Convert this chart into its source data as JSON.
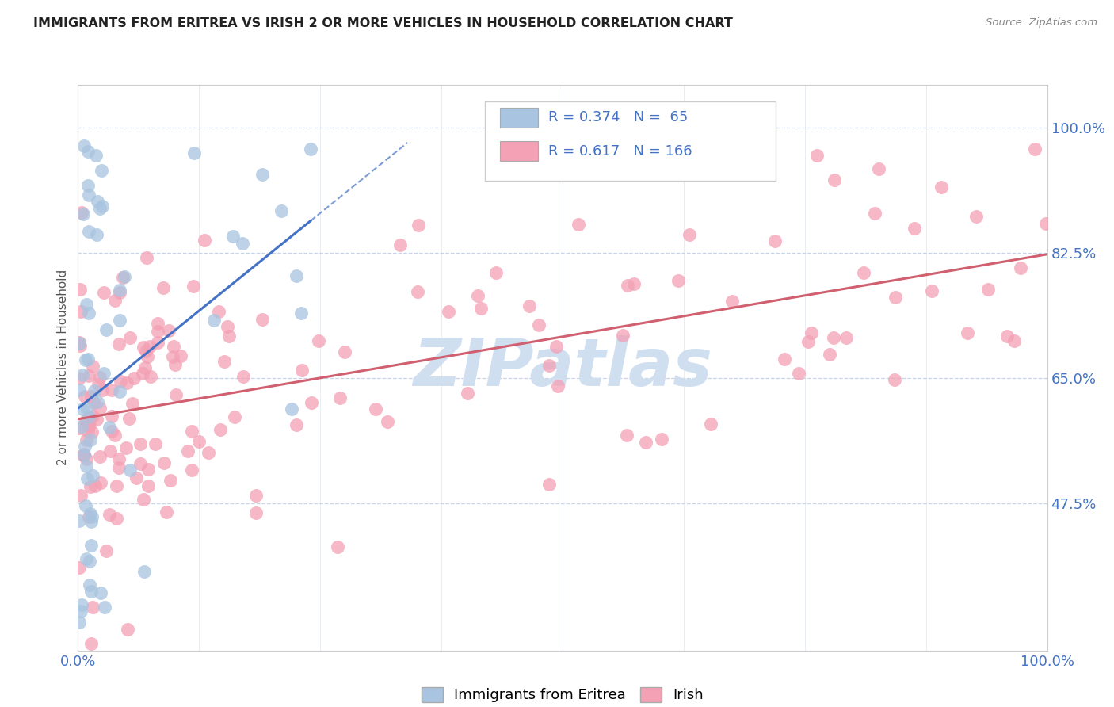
{
  "title": "IMMIGRANTS FROM ERITREA VS IRISH 2 OR MORE VEHICLES IN HOUSEHOLD CORRELATION CHART",
  "source": "Source: ZipAtlas.com",
  "ylabel": "2 or more Vehicles in Household",
  "ytick_labels": [
    "100.0%",
    "82.5%",
    "65.0%",
    "47.5%"
  ],
  "ytick_values": [
    1.0,
    0.825,
    0.65,
    0.475
  ],
  "color_eritrea": "#a8c4e0",
  "color_irish": "#f4a0b5",
  "line_eritrea": "#4472C4",
  "line_irish": "#d06070",
  "background_color": "#ffffff",
  "grid_color": "#c8d4e8",
  "watermark_color": "#d0dff0"
}
